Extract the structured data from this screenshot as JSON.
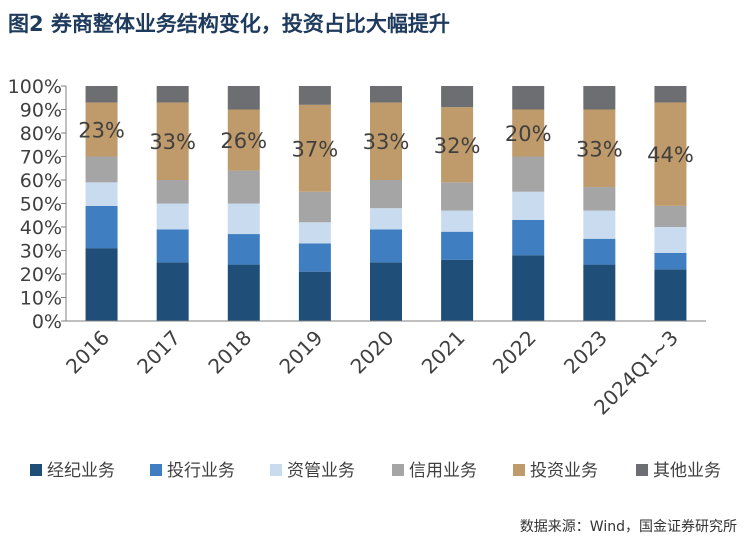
{
  "header": {
    "title": "图2  券商整体业务结构变化，投资占比大幅提升"
  },
  "footer": {
    "source": "数据来源：Wind，国金证券研究所"
  },
  "chart_data": {
    "type": "bar",
    "stacked": true,
    "categories": [
      "2016",
      "2017",
      "2018",
      "2019",
      "2020",
      "2021",
      "2022",
      "2023",
      "2024Q1~3"
    ],
    "series": [
      {
        "name": "经纪业务",
        "color": "#1f4e79",
        "values": [
          31,
          25,
          24,
          21,
          25,
          26,
          28,
          24,
          22
        ]
      },
      {
        "name": "投行业务",
        "color": "#3f7fc1",
        "values": [
          18,
          14,
          13,
          12,
          14,
          12,
          15,
          11,
          7
        ]
      },
      {
        "name": "资管业务",
        "color": "#c9dcef",
        "values": [
          10,
          11,
          13,
          9,
          9,
          9,
          12,
          12,
          11
        ]
      },
      {
        "name": "信用业务",
        "color": "#a5a5a5",
        "values": [
          11,
          10,
          14,
          13,
          12,
          12,
          15,
          10,
          9
        ]
      },
      {
        "name": "投资业务",
        "color": "#bf9a6a",
        "values": [
          23,
          33,
          26,
          37,
          33,
          32,
          20,
          33,
          44
        ]
      },
      {
        "name": "其他业务",
        "color": "#6d6e71",
        "values": [
          7,
          7,
          10,
          8,
          7,
          9,
          10,
          10,
          7
        ]
      }
    ],
    "data_labels": {
      "series": "投资业务",
      "labels": [
        "23%",
        "33%",
        "26%",
        "37%",
        "33%",
        "32%",
        "20%",
        "33%",
        "44%"
      ]
    },
    "yticks": [
      "0%",
      "10%",
      "20%",
      "30%",
      "40%",
      "50%",
      "60%",
      "70%",
      "80%",
      "90%",
      "100%"
    ],
    "ylim": [
      0,
      100
    ],
    "grid": false,
    "legend_position": "bottom"
  }
}
